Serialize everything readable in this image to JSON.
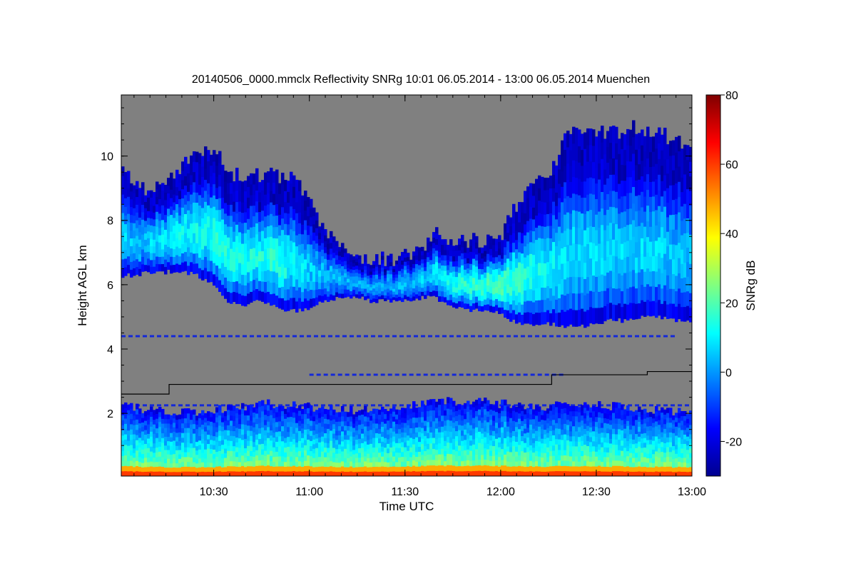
{
  "chart_data": {
    "type": "heatmap",
    "title": "20140506_0000.mmclx Reflectivity SNRg   10:01 06.05.2014 - 13:00 06.05.2014 Muenchen",
    "xlabel": "Time UTC",
    "ylabel": "Height AGL km",
    "colorbar_label": "SNRg dB",
    "x_range_minutes_utc": [
      601,
      780
    ],
    "y_range_km": [
      0.05,
      11.9
    ],
    "x_ticks": [
      {
        "value": 630,
        "label": "10:30"
      },
      {
        "value": 660,
        "label": "11:00"
      },
      {
        "value": 690,
        "label": "11:30"
      },
      {
        "value": 720,
        "label": "12:00"
      },
      {
        "value": 750,
        "label": "12:30"
      },
      {
        "value": 780,
        "label": "13:00"
      }
    ],
    "y_ticks": [
      {
        "value": 2,
        "label": "2"
      },
      {
        "value": 4,
        "label": "4"
      },
      {
        "value": 6,
        "label": "6"
      },
      {
        "value": 8,
        "label": "8"
      },
      {
        "value": 10,
        "label": "10"
      }
    ],
    "colorbar_range_db": [
      -30,
      80
    ],
    "colorbar_ticks": [
      {
        "value": -20,
        "label": "-20"
      },
      {
        "value": 0,
        "label": "0"
      },
      {
        "value": 20,
        "label": "20"
      },
      {
        "value": 40,
        "label": "40"
      },
      {
        "value": 60,
        "label": "60"
      },
      {
        "value": 80,
        "label": "80"
      }
    ],
    "colormap": [
      "#00008f",
      "#0000ff",
      "#0080ff",
      "#00ffff",
      "#80ff80",
      "#ffff00",
      "#ff8000",
      "#ff0000",
      "#800000"
    ],
    "no_signal_color": "#808080",
    "upper_cloud_layer": {
      "time_min": [
        601,
        605,
        610,
        615,
        620,
        625,
        630,
        635,
        640,
        645,
        650,
        655,
        660,
        665,
        670,
        675,
        680,
        685,
        690,
        695,
        700,
        705,
        710,
        715,
        720,
        725,
        730,
        735,
        740,
        745,
        750,
        755,
        760,
        765,
        770,
        775,
        780
      ],
      "base_km": [
        6.3,
        6.3,
        6.4,
        6.4,
        6.4,
        6.3,
        6.0,
        5.4,
        5.4,
        5.5,
        5.3,
        5.2,
        5.3,
        5.5,
        5.6,
        5.6,
        5.5,
        5.5,
        5.5,
        5.6,
        5.6,
        5.3,
        5.2,
        5.2,
        5.1,
        4.8,
        4.7,
        4.8,
        4.7,
        4.7,
        4.8,
        4.9,
        4.9,
        5.0,
        5.0,
        4.9,
        4.8
      ],
      "top_km": [
        9.5,
        9.2,
        8.8,
        9.3,
        9.7,
        10.2,
        10.3,
        9.5,
        9.3,
        9.4,
        9.4,
        9.4,
        8.7,
        7.6,
        7.1,
        6.8,
        6.8,
        6.8,
        6.9,
        7.0,
        7.6,
        7.3,
        7.4,
        7.3,
        7.5,
        8.5,
        9.3,
        9.1,
        10.7,
        10.8,
        10.8,
        10.7,
        10.9,
        10.8,
        10.7,
        10.5,
        10.3
      ],
      "peak_snr_db": [
        15,
        12,
        14,
        18,
        20,
        22,
        25,
        24,
        22,
        24,
        26,
        20,
        14,
        12,
        10,
        8,
        8,
        10,
        12,
        14,
        18,
        22,
        26,
        28,
        30,
        28,
        24,
        20,
        18,
        16,
        15,
        14,
        14,
        15,
        14,
        12,
        10
      ]
    },
    "dashed_echo_lines_km": [
      {
        "height": 4.4,
        "from_min": 601,
        "to_min": 775
      },
      {
        "height": 3.2,
        "from_min": 660,
        "to_min": 740
      },
      {
        "height": 2.25,
        "from_min": 601,
        "to_min": 780
      }
    ],
    "boundary_layer": {
      "base_km": 0.05,
      "top_km": [
        2.2,
        2.1,
        2.0,
        2.2,
        2.3,
        2.2,
        2.1,
        2.2,
        2.3,
        2.4,
        2.3,
        2.2,
        2.3,
        2.2,
        2.1,
        2.0
      ],
      "surface_snr_db": 60,
      "mid_snr_db": 25
    },
    "black_line_step": {
      "time_min": [
        601,
        616,
        616,
        661,
        661,
        676,
        676,
        736,
        736,
        751,
        751,
        766,
        766,
        780
      ],
      "height_km": [
        2.6,
        2.6,
        2.9,
        2.9,
        2.9,
        2.9,
        2.9,
        2.9,
        3.2,
        3.2,
        3.2,
        3.2,
        3.3,
        3.3
      ]
    }
  }
}
